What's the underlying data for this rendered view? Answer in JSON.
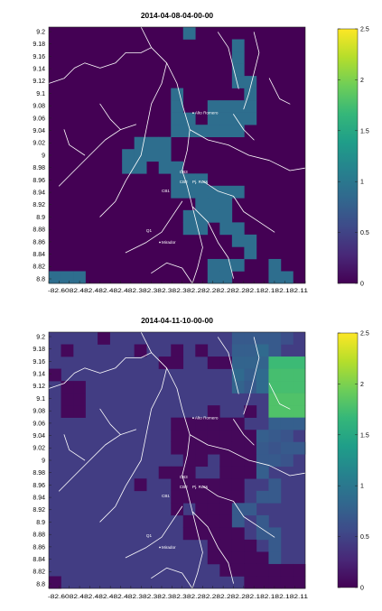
{
  "chart_data": [
    {
      "type": "heatmap",
      "title": "2014-04-08-04-00-00",
      "yticks": [
        "9.2",
        "9.18",
        "9.16",
        "9.14",
        "9.12",
        "9.1",
        "9.08",
        "9.06",
        "9.04",
        "9.02",
        "9",
        "8.98",
        "8.96",
        "8.94",
        "8.92",
        "8.9",
        "8.88",
        "8.86",
        "8.84",
        "8.82",
        "8.8"
      ],
      "xticks": [
        "-82.6",
        "-82.58",
        "-82.56",
        "-82.54",
        "-82.52",
        "-82.5",
        "-82.48",
        "-82.46",
        "-82.44",
        "-82.42",
        "-82.4",
        "-82.38",
        "-82.36",
        "-82.34",
        "-82.32",
        "-82.3",
        "-82.28",
        "-82.26",
        "-82.24",
        "-82.22",
        "-82.2",
        "-82.18",
        "-82.16",
        "-82.14",
        "-82.12",
        "-82.11"
      ],
      "xlabel_text": "-82.6082.482.482.482.482.382.382.382.382.282.282.282.282.182.182.182.11",
      "colorbar": {
        "min": 0,
        "max": 2.5,
        "ticks": [
          "0",
          "0.5",
          "1",
          "1.5",
          "2",
          "2.5"
        ],
        "colormap": "viridis"
      },
      "places": [
        "Alto Romero",
        "CB3",
        "CB2",
        "CB1",
        "Pj. Ross",
        "Q1",
        "Mirador"
      ],
      "xlim": [
        -82.61,
        -82.11
      ],
      "ylim": [
        8.8,
        9.2
      ],
      "grid_rows": 21,
      "grid_cols": 21,
      "cells": [
        [
          0,
          11,
          0.9
        ],
        [
          1,
          15,
          0.9
        ],
        [
          2,
          15,
          0.9
        ],
        [
          3,
          15,
          0.9
        ],
        [
          4,
          15,
          0.9
        ],
        [
          4,
          16,
          0.9
        ],
        [
          5,
          10,
          0.9
        ],
        [
          5,
          16,
          0.9
        ],
        [
          6,
          10,
          0.9
        ],
        [
          6,
          13,
          0.9
        ],
        [
          6,
          14,
          0.9
        ],
        [
          6,
          15,
          0.9
        ],
        [
          6,
          16,
          0.9
        ],
        [
          7,
          10,
          0.9
        ],
        [
          7,
          11,
          0.9
        ],
        [
          7,
          13,
          0.9
        ],
        [
          7,
          14,
          0.9
        ],
        [
          7,
          15,
          0.9
        ],
        [
          7,
          16,
          0.9
        ],
        [
          8,
          10,
          0.9
        ],
        [
          8,
          11,
          0.9
        ],
        [
          8,
          12,
          0.9
        ],
        [
          8,
          13,
          0.9
        ],
        [
          8,
          14,
          0.9
        ],
        [
          8,
          15,
          0.9
        ],
        [
          9,
          7,
          0.9
        ],
        [
          9,
          8,
          0.9
        ],
        [
          9,
          9,
          0.9
        ],
        [
          10,
          6,
          0.9
        ],
        [
          10,
          7,
          0.9
        ],
        [
          10,
          8,
          0.9
        ],
        [
          10,
          9,
          0.9
        ],
        [
          11,
          6,
          0.9
        ],
        [
          11,
          7,
          0.9
        ],
        [
          11,
          9,
          0.9
        ],
        [
          11,
          10,
          0.9
        ],
        [
          12,
          10,
          0.9
        ],
        [
          12,
          11,
          0.9
        ],
        [
          12,
          12,
          0.9
        ],
        [
          13,
          10,
          0.9
        ],
        [
          13,
          11,
          0.9
        ],
        [
          13,
          12,
          0.9
        ],
        [
          13,
          13,
          0.9
        ],
        [
          13,
          14,
          0.9
        ],
        [
          13,
          15,
          0.9
        ],
        [
          14,
          12,
          0.9
        ],
        [
          14,
          13,
          0.9
        ],
        [
          14,
          14,
          0.9
        ],
        [
          15,
          11,
          0.9
        ],
        [
          15,
          12,
          0.9
        ],
        [
          15,
          13,
          0.9
        ],
        [
          15,
          14,
          0.9
        ],
        [
          16,
          11,
          0.9
        ],
        [
          16,
          12,
          0.9
        ],
        [
          16,
          14,
          0.9
        ],
        [
          16,
          15,
          0.9
        ],
        [
          17,
          15,
          0.9
        ],
        [
          17,
          16,
          0.9
        ],
        [
          18,
          16,
          0.9
        ],
        [
          19,
          13,
          0.9
        ],
        [
          19,
          14,
          0.9
        ],
        [
          19,
          15,
          0.9
        ],
        [
          19,
          18,
          0.9
        ],
        [
          20,
          0,
          0.9
        ],
        [
          20,
          1,
          0.9
        ],
        [
          20,
          2,
          0.9
        ],
        [
          20,
          13,
          0.9
        ],
        [
          20,
          14,
          0.9
        ],
        [
          20,
          18,
          0.9
        ],
        [
          20,
          19,
          0.9
        ]
      ]
    },
    {
      "type": "heatmap",
      "title": "2014-04-11-10-00-00",
      "yticks": [
        "9.2",
        "9.18",
        "9.16",
        "9.14",
        "9.12",
        "9.1",
        "9.08",
        "9.06",
        "9.04",
        "9.02",
        "9",
        "8.98",
        "8.96",
        "8.94",
        "8.92",
        "8.9",
        "8.88",
        "8.86",
        "8.84",
        "8.82",
        "8.8"
      ],
      "xticks": [
        "-82.6",
        "-82.58",
        "-82.56",
        "-82.54",
        "-82.52",
        "-82.5",
        "-82.48",
        "-82.46",
        "-82.44",
        "-82.42",
        "-82.4",
        "-82.38",
        "-82.36",
        "-82.34",
        "-82.32",
        "-82.3",
        "-82.28",
        "-82.26",
        "-82.24",
        "-82.22",
        "-82.2",
        "-82.18",
        "-82.16",
        "-82.14",
        "-82.12",
        "-82.11"
      ],
      "xlabel_text": "-82.6082.482.482.482.482.382.382.382.382.282.282.282.282.182.182.182.11",
      "colorbar": {
        "min": 0,
        "max": 2.5,
        "ticks": [
          "0",
          "0.5",
          "1",
          "1.5",
          "2",
          "2.5"
        ],
        "colormap": "viridis"
      },
      "places": [
        "Alto Romero",
        "CB3",
        "CB2",
        "CB1",
        "Pj. Ross",
        "Q1",
        "Mirador"
      ],
      "xlim": [
        -82.61,
        -82.11
      ],
      "ylim": [
        8.8,
        9.2
      ],
      "grid_rows": 21,
      "grid_cols": 21,
      "background_value": 0.45,
      "cells": [
        [
          0,
          4,
          0.05
        ],
        [
          0,
          15,
          0.7
        ],
        [
          0,
          16,
          0.7
        ],
        [
          0,
          17,
          0.7
        ],
        [
          0,
          18,
          0.7
        ],
        [
          0,
          19,
          0.6
        ],
        [
          1,
          1,
          0.05
        ],
        [
          1,
          7,
          0.05
        ],
        [
          1,
          10,
          0.05
        ],
        [
          1,
          12,
          0.05
        ],
        [
          1,
          15,
          0.75
        ],
        [
          1,
          16,
          0.75
        ],
        [
          1,
          17,
          0.85
        ],
        [
          1,
          18,
          0.7
        ],
        [
          2,
          9,
          0.05
        ],
        [
          2,
          10,
          0.05
        ],
        [
          2,
          13,
          0.05
        ],
        [
          2,
          14,
          0.05
        ],
        [
          2,
          15,
          0.8
        ],
        [
          2,
          16,
          0.8
        ],
        [
          2,
          17,
          0.8
        ],
        [
          2,
          18,
          1.7
        ],
        [
          2,
          19,
          1.7
        ],
        [
          2,
          20,
          1.7
        ],
        [
          3,
          0,
          0.05
        ],
        [
          3,
          15,
          0.85
        ],
        [
          3,
          16,
          0.75
        ],
        [
          3,
          17,
          0.85
        ],
        [
          3,
          18,
          1.75
        ],
        [
          3,
          19,
          1.75
        ],
        [
          3,
          20,
          1.75
        ],
        [
          4,
          1,
          0.05
        ],
        [
          4,
          2,
          0.05
        ],
        [
          4,
          15,
          0.8
        ],
        [
          4,
          16,
          0.7
        ],
        [
          4,
          17,
          0.85
        ],
        [
          4,
          18,
          1.75
        ],
        [
          4,
          19,
          1.75
        ],
        [
          4,
          20,
          1.75
        ],
        [
          5,
          1,
          0.05
        ],
        [
          5,
          2,
          0.05
        ],
        [
          5,
          18,
          1.8
        ],
        [
          5,
          19,
          1.8
        ],
        [
          5,
          20,
          1.8
        ],
        [
          6,
          1,
          0.05
        ],
        [
          6,
          2,
          0.05
        ],
        [
          6,
          13,
          0.05
        ],
        [
          6,
          16,
          0.05
        ],
        [
          6,
          18,
          1.8
        ],
        [
          6,
          19,
          1.8
        ],
        [
          6,
          20,
          1.8
        ],
        [
          7,
          10,
          0.05
        ],
        [
          7,
          11,
          0.05
        ],
        [
          7,
          12,
          0.05
        ],
        [
          7,
          13,
          0.05
        ],
        [
          7,
          14,
          0.05
        ],
        [
          7,
          15,
          0.05
        ],
        [
          7,
          18,
          0.75
        ],
        [
          7,
          19,
          0.75
        ],
        [
          7,
          20,
          0.75
        ],
        [
          8,
          10,
          0.05
        ],
        [
          8,
          11,
          0.05
        ],
        [
          8,
          12,
          0.05
        ],
        [
          8,
          13,
          0.05
        ],
        [
          8,
          14,
          0.05
        ],
        [
          8,
          15,
          0.05
        ],
        [
          8,
          16,
          0.05
        ],
        [
          8,
          17,
          0.75
        ],
        [
          8,
          18,
          0.7
        ],
        [
          8,
          19,
          0.65
        ],
        [
          9,
          10,
          0.05
        ],
        [
          9,
          11,
          0.05
        ],
        [
          9,
          12,
          0.05
        ],
        [
          9,
          13,
          0.05
        ],
        [
          9,
          14,
          0.05
        ],
        [
          9,
          15,
          0.05
        ],
        [
          9,
          16,
          0.05
        ],
        [
          9,
          17,
          0.7
        ],
        [
          9,
          18,
          0.65
        ],
        [
          9,
          19,
          0.7
        ],
        [
          9,
          20,
          0.7
        ],
        [
          10,
          11,
          0.05
        ],
        [
          10,
          12,
          0.05
        ],
        [
          10,
          14,
          0.05
        ],
        [
          10,
          15,
          0.05
        ],
        [
          10,
          16,
          0.05
        ],
        [
          10,
          17,
          0.7
        ],
        [
          10,
          18,
          0.7
        ],
        [
          10,
          19,
          0.65
        ],
        [
          11,
          9,
          0.05
        ],
        [
          11,
          10,
          0.05
        ],
        [
          11,
          11,
          0.05
        ],
        [
          11,
          14,
          0.05
        ],
        [
          11,
          15,
          0.05
        ],
        [
          11,
          16,
          0.05
        ],
        [
          11,
          17,
          0.75
        ],
        [
          12,
          7,
          0.05
        ],
        [
          12,
          10,
          0.05
        ],
        [
          12,
          11,
          0.05
        ],
        [
          12,
          12,
          0.05
        ],
        [
          12,
          13,
          0.05
        ],
        [
          12,
          14,
          0.05
        ],
        [
          12,
          15,
          0.05
        ],
        [
          12,
          18,
          0.7
        ],
        [
          13,
          10,
          0.05
        ],
        [
          13,
          11,
          0.05
        ],
        [
          13,
          12,
          0.05
        ],
        [
          13,
          13,
          0.05
        ],
        [
          13,
          14,
          0.05
        ],
        [
          13,
          15,
          0.05
        ],
        [
          13,
          17,
          0.7
        ],
        [
          13,
          18,
          0.7
        ],
        [
          14,
          10,
          0.05
        ],
        [
          14,
          12,
          0.05
        ],
        [
          14,
          13,
          0.05
        ],
        [
          14,
          14,
          0.05
        ],
        [
          14,
          15,
          0.7
        ],
        [
          14,
          16,
          0.7
        ],
        [
          15,
          11,
          0.05
        ],
        [
          15,
          12,
          0.05
        ],
        [
          15,
          13,
          0.05
        ],
        [
          15,
          14,
          0.05
        ],
        [
          15,
          15,
          0.7
        ],
        [
          15,
          17,
          0.7
        ],
        [
          16,
          11,
          0.05
        ],
        [
          16,
          12,
          0.05
        ],
        [
          16,
          13,
          0.05
        ],
        [
          16,
          14,
          0.05
        ],
        [
          16,
          15,
          0.05
        ],
        [
          16,
          17,
          0.7
        ],
        [
          16,
          18,
          0.7
        ],
        [
          17,
          13,
          0.05
        ],
        [
          17,
          14,
          0.05
        ],
        [
          17,
          15,
          0.05
        ],
        [
          17,
          16,
          0.05
        ],
        [
          17,
          18,
          0.7
        ],
        [
          18,
          13,
          0.05
        ],
        [
          18,
          14,
          0.05
        ],
        [
          18,
          15,
          0.05
        ],
        [
          18,
          16,
          0.05
        ],
        [
          18,
          17,
          0.05
        ],
        [
          18,
          18,
          0.7
        ],
        [
          19,
          14,
          0.05
        ],
        [
          19,
          15,
          0.05
        ],
        [
          19,
          16,
          0.05
        ],
        [
          19,
          17,
          0.05
        ],
        [
          19,
          18,
          0.05
        ],
        [
          19,
          19,
          0.05
        ],
        [
          19,
          20,
          0.05
        ],
        [
          20,
          0,
          0.05
        ],
        [
          20,
          16,
          0.05
        ],
        [
          20,
          17,
          0.05
        ],
        [
          20,
          18,
          0.05
        ],
        [
          20,
          19,
          0.05
        ],
        [
          20,
          20,
          0.05
        ]
      ]
    }
  ]
}
